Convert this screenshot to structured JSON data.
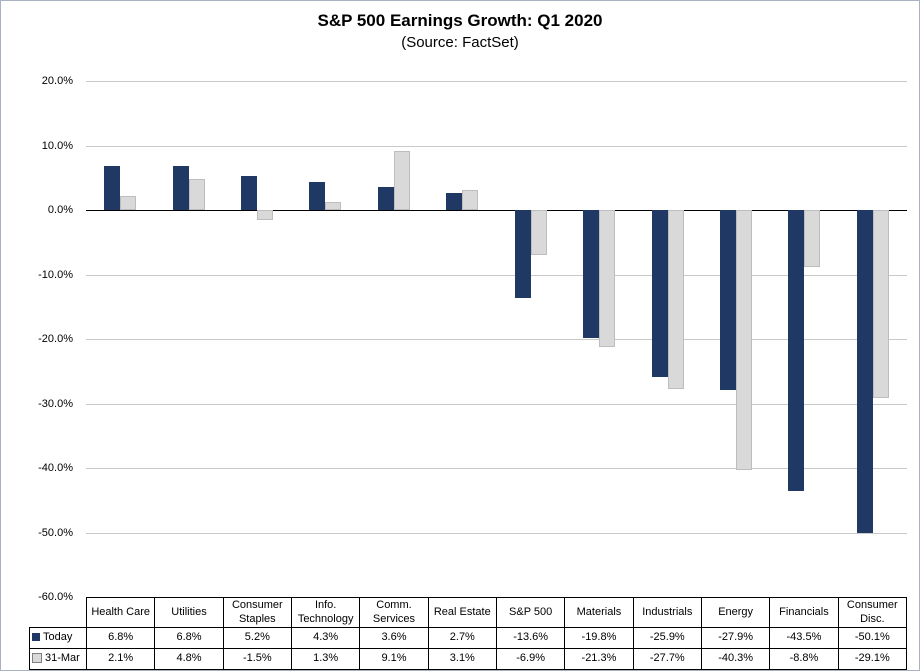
{
  "chart_data": {
    "type": "bar",
    "title": "S&P 500 Earnings Growth: Q1 2020",
    "subtitle": "(Source: FactSet)",
    "categories": [
      "Health Care",
      "Utilities",
      "Consumer Staples",
      "Info. Technology",
      "Comm. Services",
      "Real Estate",
      "S&P 500",
      "Materials",
      "Industrials",
      "Energy",
      "Financials",
      "Consumer Disc."
    ],
    "series": [
      {
        "name": "Today",
        "color": "#1F3864",
        "values": [
          6.8,
          6.8,
          5.2,
          4.3,
          3.6,
          2.7,
          -13.6,
          -19.8,
          -25.9,
          -27.9,
          -43.5,
          -50.1
        ]
      },
      {
        "name": "31-Mar",
        "color": "#D9D9D9",
        "values": [
          2.1,
          4.8,
          -1.5,
          1.3,
          9.1,
          3.1,
          -6.9,
          -21.3,
          -27.7,
          -40.3,
          -8.8,
          -29.1
        ]
      }
    ],
    "ylim": [
      -60,
      20
    ],
    "ytick_step": 10,
    "ytick_suffix": "%",
    "grid": true,
    "legend_position": "bottom-table-left",
    "value_format": "one_decimal_percent"
  },
  "colors": {
    "grid_line": "#C9C9C9",
    "zero_line": "#000000",
    "series_today": "#1F3864",
    "series_31mar": "#D9D9D9",
    "gray_bar_border": "#BDBDBD",
    "figure_border": "#A9B2C3"
  }
}
